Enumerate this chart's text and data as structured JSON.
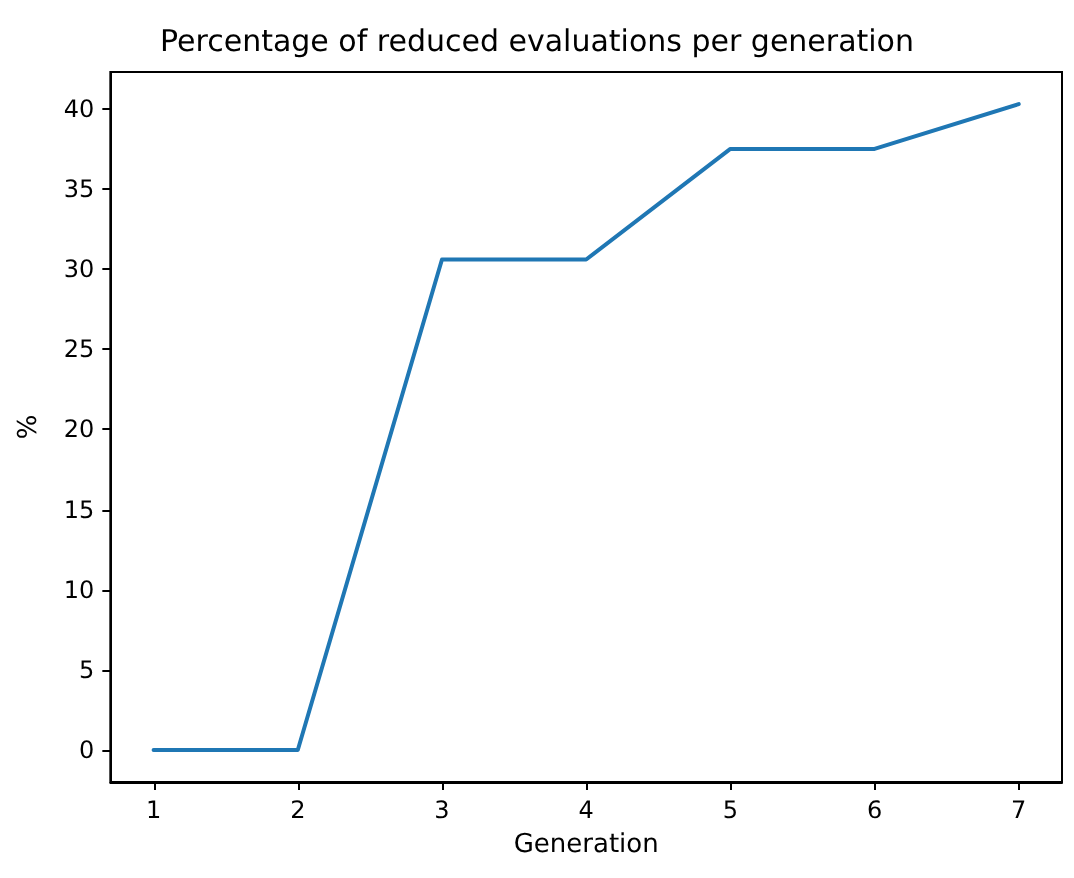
{
  "chart_data": {
    "type": "line",
    "title": "Percentage of reduced evaluations per generation",
    "xlabel": "Generation",
    "ylabel": "%",
    "x": [
      1,
      2,
      3,
      4,
      5,
      6,
      7
    ],
    "series": [
      {
        "color": "#1f77b4",
        "values": [
          0,
          0,
          30.6,
          30.6,
          37.5,
          37.5,
          40.3
        ]
      }
    ],
    "xlim": [
      0.7,
      7.3
    ],
    "xticks": [
      1,
      2,
      3,
      4,
      5,
      6,
      7
    ],
    "ylim": [
      -2,
      42.3
    ],
    "yticks": [
      0,
      5,
      10,
      15,
      20,
      25,
      30,
      35,
      40
    ],
    "grid": false,
    "marker": "none",
    "line_style": "solid"
  }
}
